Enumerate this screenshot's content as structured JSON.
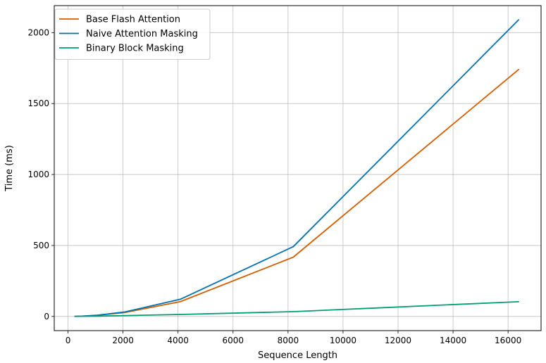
{
  "chart_data": {
    "type": "line",
    "xlabel": "Sequence Length",
    "ylabel": "Time (ms)",
    "xlim": [
      -500,
      17200
    ],
    "ylim": [
      -100,
      2190
    ],
    "xticks": [
      0,
      2000,
      4000,
      6000,
      8000,
      10000,
      12000,
      14000,
      16000
    ],
    "yticks": [
      0,
      500,
      1000,
      1500,
      2000
    ],
    "grid": true,
    "legend_position": "top-left",
    "series": [
      {
        "name": "Base Flash Attention",
        "color": "#d55e00",
        "x": [
          256,
          512,
          1024,
          2048,
          4096,
          8192,
          16384
        ],
        "y": [
          0.5,
          1.8,
          7,
          27,
          105,
          418,
          1740
        ]
      },
      {
        "name": "Naive Attention Masking",
        "color": "#0072b2",
        "x": [
          256,
          512,
          1024,
          2048,
          4096,
          8192,
          16384
        ],
        "y": [
          0.6,
          2.2,
          8,
          31,
          122,
          492,
          2090
        ]
      },
      {
        "name": "Binary Block Masking",
        "color": "#009e73",
        "x": [
          256,
          512,
          1024,
          2048,
          4096,
          8192,
          16384
        ],
        "y": [
          0.3,
          0.8,
          2,
          6,
          14,
          34,
          104
        ]
      }
    ]
  }
}
